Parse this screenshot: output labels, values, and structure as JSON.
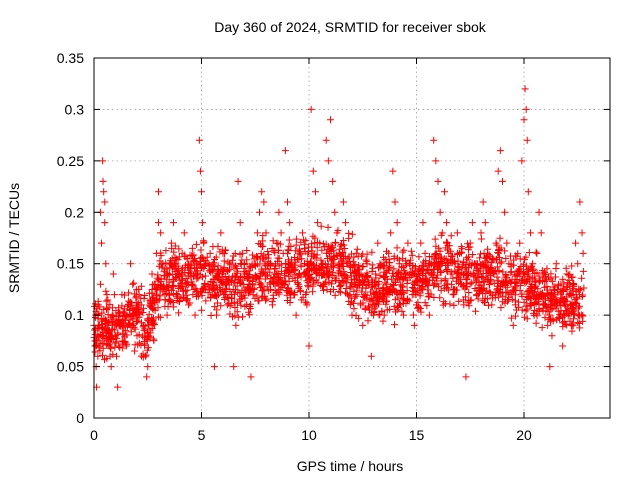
{
  "chart_data": {
    "type": "scatter",
    "title": "Day 360 of 2024, SRMTID for receiver sbok",
    "xlabel": "GPS time / hours",
    "ylabel": "SRMTID / TECUs",
    "xlim": [
      0,
      24
    ],
    "ylim": [
      0,
      0.35
    ],
    "x_ticks": [
      0,
      5,
      10,
      15,
      20
    ],
    "x_tick_labels": [
      "0",
      "5",
      "10",
      "15",
      "20"
    ],
    "y_ticks": [
      0,
      0.05,
      0.1,
      0.15,
      0.2,
      0.25,
      0.3,
      0.35
    ],
    "y_tick_labels": [
      "0",
      "0.05",
      "0.1",
      "0.15",
      "0.2",
      "0.25",
      "0.3",
      "0.35"
    ],
    "grid": true,
    "marker": "plus",
    "series_color": "#ff0000",
    "series": [
      {
        "points": [
          [
            0.0,
            0.09
          ],
          [
            0.05,
            0.07
          ],
          [
            0.08,
            0.1
          ],
          [
            0.1,
            0.05
          ],
          [
            0.12,
            0.03
          ],
          [
            0.15,
            0.08
          ],
          [
            0.18,
            0.06
          ],
          [
            0.2,
            0.11
          ],
          [
            0.25,
            0.09
          ],
          [
            0.3,
            0.13
          ],
          [
            0.3,
            0.2
          ],
          [
            0.35,
            0.17
          ],
          [
            0.4,
            0.25
          ],
          [
            0.42,
            0.23
          ],
          [
            0.45,
            0.22
          ],
          [
            0.5,
            0.21
          ],
          [
            0.5,
            0.19
          ],
          [
            0.55,
            0.15
          ],
          [
            0.6,
            0.12
          ],
          [
            0.65,
            0.09
          ],
          [
            0.7,
            0.07
          ],
          [
            0.75,
            0.06
          ],
          [
            0.8,
            0.05
          ],
          [
            0.85,
            0.1
          ],
          [
            0.9,
            0.14
          ],
          [
            0.95,
            0.12
          ],
          [
            1.0,
            0.08
          ],
          [
            1.05,
            0.06
          ],
          [
            1.1,
            0.03
          ],
          [
            1.15,
            0.07
          ],
          [
            1.2,
            0.1
          ],
          [
            1.3,
            0.12
          ],
          [
            1.4,
            0.09
          ],
          [
            1.5,
            0.07
          ],
          [
            1.6,
            0.11
          ],
          [
            1.7,
            0.15
          ],
          [
            1.8,
            0.13
          ],
          [
            1.9,
            0.1
          ],
          [
            2.0,
            0.08
          ],
          [
            2.1,
            0.12
          ],
          [
            2.2,
            0.11
          ],
          [
            2.3,
            0.09
          ],
          [
            2.4,
            0.06
          ],
          [
            2.45,
            0.04
          ],
          [
            2.5,
            0.05
          ],
          [
            2.55,
            0.08
          ],
          [
            2.6,
            0.11
          ],
          [
            2.7,
            0.14
          ],
          [
            2.8,
            0.13
          ],
          [
            2.9,
            0.16
          ],
          [
            3.0,
            0.19
          ],
          [
            3.0,
            0.22
          ],
          [
            3.1,
            0.18
          ],
          [
            3.2,
            0.15
          ],
          [
            3.3,
            0.12
          ],
          [
            3.4,
            0.1
          ],
          [
            3.5,
            0.14
          ],
          [
            3.6,
            0.17
          ],
          [
            3.7,
            0.19
          ],
          [
            3.8,
            0.15
          ],
          [
            3.9,
            0.12
          ],
          [
            4.0,
            0.14
          ],
          [
            4.1,
            0.16
          ],
          [
            4.2,
            0.18
          ],
          [
            4.3,
            0.13
          ],
          [
            4.4,
            0.11
          ],
          [
            4.5,
            0.14
          ],
          [
            4.6,
            0.12
          ],
          [
            4.7,
            0.1
          ],
          [
            4.8,
            0.15
          ],
          [
            4.9,
            0.27
          ],
          [
            4.95,
            0.24
          ],
          [
            5.0,
            0.22
          ],
          [
            5.05,
            0.19
          ],
          [
            5.1,
            0.17
          ],
          [
            5.2,
            0.15
          ],
          [
            5.3,
            0.13
          ],
          [
            5.4,
            0.16
          ],
          [
            5.5,
            0.12
          ],
          [
            5.6,
            0.05
          ],
          [
            5.7,
            0.1
          ],
          [
            5.8,
            0.14
          ],
          [
            5.9,
            0.18
          ],
          [
            6.0,
            0.16
          ],
          [
            6.1,
            0.13
          ],
          [
            6.2,
            0.11
          ],
          [
            6.3,
            0.15
          ],
          [
            6.4,
            0.12
          ],
          [
            6.5,
            0.05
          ],
          [
            6.6,
            0.09
          ],
          [
            6.7,
            0.23
          ],
          [
            6.8,
            0.19
          ],
          [
            6.9,
            0.16
          ],
          [
            7.0,
            0.14
          ],
          [
            7.1,
            0.11
          ],
          [
            7.2,
            0.13
          ],
          [
            7.3,
            0.04
          ],
          [
            7.4,
            0.12
          ],
          [
            7.5,
            0.15
          ],
          [
            7.6,
            0.18
          ],
          [
            7.7,
            0.2
          ],
          [
            7.8,
            0.22
          ],
          [
            7.9,
            0.21
          ],
          [
            8.0,
            0.18
          ],
          [
            8.1,
            0.15
          ],
          [
            8.2,
            0.13
          ],
          [
            8.3,
            0.11
          ],
          [
            8.4,
            0.14
          ],
          [
            8.5,
            0.17
          ],
          [
            8.6,
            0.2
          ],
          [
            8.7,
            0.18
          ],
          [
            8.8,
            0.16
          ],
          [
            8.9,
            0.26
          ],
          [
            9.0,
            0.21
          ],
          [
            9.1,
            0.19
          ],
          [
            9.2,
            0.15
          ],
          [
            9.3,
            0.12
          ],
          [
            9.4,
            0.1
          ],
          [
            9.5,
            0.13
          ],
          [
            9.6,
            0.16
          ],
          [
            9.7,
            0.18
          ],
          [
            9.8,
            0.14
          ],
          [
            9.9,
            0.11
          ],
          [
            10.0,
            0.07
          ],
          [
            10.1,
            0.3
          ],
          [
            10.2,
            0.24
          ],
          [
            10.3,
            0.22
          ],
          [
            10.4,
            0.19
          ],
          [
            10.5,
            0.17
          ],
          [
            10.6,
            0.15
          ],
          [
            10.7,
            0.13
          ],
          [
            10.8,
            0.27
          ],
          [
            10.9,
            0.25
          ],
          [
            11.0,
            0.29
          ],
          [
            11.1,
            0.23
          ],
          [
            11.2,
            0.2
          ],
          [
            11.3,
            0.18
          ],
          [
            11.4,
            0.16
          ],
          [
            11.5,
            0.14
          ],
          [
            11.6,
            0.21
          ],
          [
            11.7,
            0.19
          ],
          [
            11.8,
            0.15
          ],
          [
            11.9,
            0.12
          ],
          [
            12.0,
            0.1
          ],
          [
            12.1,
            0.13
          ],
          [
            12.2,
            0.16
          ],
          [
            12.3,
            0.14
          ],
          [
            12.4,
            0.11
          ],
          [
            12.5,
            0.09
          ],
          [
            12.6,
            0.12
          ],
          [
            12.7,
            0.15
          ],
          [
            12.8,
            0.13
          ],
          [
            12.9,
            0.06
          ],
          [
            13.0,
            0.1
          ],
          [
            13.1,
            0.14
          ],
          [
            13.2,
            0.17
          ],
          [
            13.3,
            0.15
          ],
          [
            13.4,
            0.12
          ],
          [
            13.5,
            0.1
          ],
          [
            13.6,
            0.13
          ],
          [
            13.7,
            0.16
          ],
          [
            13.8,
            0.18
          ],
          [
            13.9,
            0.24
          ],
          [
            14.0,
            0.21
          ],
          [
            14.1,
            0.19
          ],
          [
            14.2,
            0.15
          ],
          [
            14.3,
            0.12
          ],
          [
            14.4,
            0.1
          ],
          [
            14.5,
            0.14
          ],
          [
            14.6,
            0.17
          ],
          [
            14.7,
            0.15
          ],
          [
            14.8,
            0.12
          ],
          [
            14.9,
            0.09
          ],
          [
            15.0,
            0.11
          ],
          [
            15.1,
            0.14
          ],
          [
            15.2,
            0.17
          ],
          [
            15.3,
            0.19
          ],
          [
            15.4,
            0.16
          ],
          [
            15.5,
            0.13
          ],
          [
            15.6,
            0.1
          ],
          [
            15.7,
            0.14
          ],
          [
            15.8,
            0.27
          ],
          [
            15.9,
            0.25
          ],
          [
            16.0,
            0.23
          ],
          [
            16.1,
            0.2
          ],
          [
            16.2,
            0.18
          ],
          [
            16.3,
            0.22
          ],
          [
            16.4,
            0.19
          ],
          [
            16.5,
            0.16
          ],
          [
            16.6,
            0.14
          ],
          [
            16.7,
            0.12
          ],
          [
            16.8,
            0.15
          ],
          [
            16.9,
            0.18
          ],
          [
            17.0,
            0.16
          ],
          [
            17.1,
            0.13
          ],
          [
            17.2,
            0.11
          ],
          [
            17.3,
            0.04
          ],
          [
            17.4,
            0.14
          ],
          [
            17.5,
            0.17
          ],
          [
            17.6,
            0.19
          ],
          [
            17.7,
            0.15
          ],
          [
            17.8,
            0.12
          ],
          [
            17.9,
            0.14
          ],
          [
            18.0,
            0.18
          ],
          [
            18.1,
            0.21
          ],
          [
            18.2,
            0.19
          ],
          [
            18.3,
            0.16
          ],
          [
            18.4,
            0.13
          ],
          [
            18.5,
            0.11
          ],
          [
            18.6,
            0.14
          ],
          [
            18.7,
            0.17
          ],
          [
            18.8,
            0.24
          ],
          [
            18.9,
            0.26
          ],
          [
            19.0,
            0.23
          ],
          [
            19.1,
            0.2
          ],
          [
            19.2,
            0.17
          ],
          [
            19.3,
            0.15
          ],
          [
            19.4,
            0.12
          ],
          [
            19.5,
            0.09
          ],
          [
            19.6,
            0.11
          ],
          [
            19.7,
            0.14
          ],
          [
            19.8,
            0.17
          ],
          [
            19.9,
            0.25
          ],
          [
            20.0,
            0.29
          ],
          [
            20.05,
            0.32
          ],
          [
            20.1,
            0.3
          ],
          [
            20.15,
            0.27
          ],
          [
            20.2,
            0.22
          ],
          [
            20.3,
            0.18
          ],
          [
            20.4,
            0.15
          ],
          [
            20.5,
            0.12
          ],
          [
            20.6,
            0.16
          ],
          [
            20.7,
            0.2
          ],
          [
            20.8,
            0.18
          ],
          [
            20.9,
            0.14
          ],
          [
            21.0,
            0.11
          ],
          [
            21.1,
            0.09
          ],
          [
            21.2,
            0.05
          ],
          [
            21.3,
            0.08
          ],
          [
            21.4,
            0.12
          ],
          [
            21.5,
            0.15
          ],
          [
            21.6,
            0.13
          ],
          [
            21.7,
            0.1
          ],
          [
            21.8,
            0.07
          ],
          [
            21.9,
            0.11
          ],
          [
            22.0,
            0.14
          ],
          [
            22.1,
            0.12
          ],
          [
            22.2,
            0.09
          ],
          [
            22.3,
            0.13
          ],
          [
            22.4,
            0.17
          ],
          [
            22.5,
            0.15
          ],
          [
            22.6,
            0.21
          ],
          [
            22.7,
            0.18
          ],
          [
            22.75,
            0.16
          ]
        ]
      }
    ],
    "band": {
      "x_start": 0,
      "x_end": 22.8,
      "y_center_by_hour": [
        [
          0,
          0.09
        ],
        [
          1,
          0.085
        ],
        [
          2,
          0.1
        ],
        [
          2.5,
          0.085
        ],
        [
          3,
          0.13
        ],
        [
          4,
          0.135
        ],
        [
          5,
          0.14
        ],
        [
          6,
          0.13
        ],
        [
          7,
          0.13
        ],
        [
          8,
          0.14
        ],
        [
          9,
          0.14
        ],
        [
          10,
          0.145
        ],
        [
          11,
          0.15
        ],
        [
          12,
          0.14
        ],
        [
          13,
          0.125
        ],
        [
          14,
          0.13
        ],
        [
          15,
          0.13
        ],
        [
          16,
          0.145
        ],
        [
          17,
          0.14
        ],
        [
          18,
          0.14
        ],
        [
          19,
          0.14
        ],
        [
          20,
          0.13
        ],
        [
          21,
          0.12
        ],
        [
          22,
          0.11
        ],
        [
          22.8,
          0.115
        ]
      ],
      "spread": 0.028,
      "count": 2200
    }
  }
}
